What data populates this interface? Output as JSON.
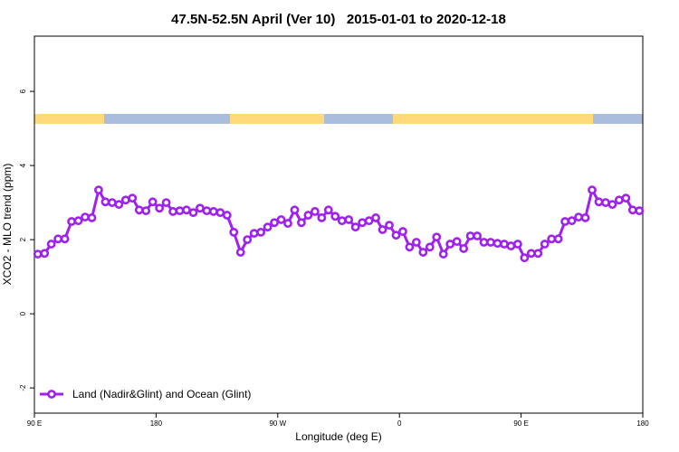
{
  "chart_data": {
    "type": "line",
    "title": "47.5N-52.5N April (Ver 10)   2015-01-01 to 2020-12-18",
    "x_label": "Longitude (deg E)",
    "y_label": "XCO2 - MLO trend (ppm)",
    "xlim": [
      90,
      540
    ],
    "ylim": [
      -2.68,
      7.49
    ],
    "xticks": [
      {
        "value": 90,
        "label": "90 E"
      },
      180,
      {
        "value": 270,
        "label": "90 W"
      },
      {
        "value": 360,
        "label": "0"
      },
      {
        "value": 450,
        "label": "90 E"
      },
      {
        "value": 540,
        "label": "180"
      }
    ],
    "yticks": [
      -2,
      0,
      2,
      4,
      6
    ],
    "legend": "bottom-left",
    "x": [
      92.5,
      97.5,
      102.5,
      107.5,
      112.5,
      117.5,
      122.5,
      127.5,
      132.5,
      137.5,
      142.5,
      147.5,
      152.5,
      157.5,
      162.5,
      167.5,
      172.5,
      177.5,
      182.5,
      187.5,
      192.5,
      197.5,
      202.5,
      207.5,
      212.5,
      217.5,
      222.5,
      227.5,
      232.5,
      237.5,
      242.5,
      247.5,
      252.5,
      257.5,
      262.5,
      267.5,
      272.5,
      277.5,
      282.5,
      287.5,
      292.5,
      297.5,
      302.5,
      307.5,
      312.5,
      317.5,
      322.5,
      327.5,
      332.5,
      337.5,
      342.5,
      347.5,
      352.5,
      357.5,
      362.5,
      367.5,
      372.5,
      377.5,
      382.5,
      387.5,
      392.5,
      397.5,
      402.5,
      407.5,
      412.5,
      417.5,
      422.5,
      427.5,
      432.5,
      437.5,
      442.5,
      447.5,
      452.5,
      457.5,
      462.5,
      467.5,
      472.5,
      477.5,
      482.5,
      487.5,
      492.5,
      497.5,
      502.5,
      507.5,
      512.5,
      517.5,
      522.5,
      527.5,
      532.5,
      537.5
    ],
    "series": [
      {
        "name": "Land (Nadir&Glint) and Ocean (Glint)",
        "color": "#a020f0",
        "values": [
          1.61,
          1.63,
          1.88,
          2.02,
          2.02,
          2.49,
          2.51,
          2.61,
          2.59,
          3.34,
          3.02,
          3.0,
          2.95,
          3.07,
          3.12,
          2.8,
          2.78,
          3.02,
          2.85,
          3.0,
          2.76,
          2.78,
          2.8,
          2.73,
          2.85,
          2.78,
          2.76,
          2.73,
          2.66,
          2.2,
          1.66,
          2.0,
          2.17,
          2.2,
          2.34,
          2.46,
          2.54,
          2.44,
          2.8,
          2.46,
          2.66,
          2.76,
          2.59,
          2.8,
          2.63,
          2.51,
          2.54,
          2.34,
          2.46,
          2.51,
          2.59,
          2.27,
          2.39,
          2.12,
          2.22,
          1.8,
          1.93,
          1.66,
          1.8,
          2.07,
          1.61,
          1.88,
          1.95,
          1.76,
          2.1,
          2.1,
          1.93,
          1.93,
          1.9,
          1.88,
          1.83,
          1.88,
          1.51,
          1.63,
          1.63,
          1.88,
          2.02,
          2.02,
          2.49,
          2.51,
          2.61,
          2.59,
          3.34,
          3.02,
          3.0,
          2.95,
          3.07,
          3.12,
          2.8,
          2.78
        ]
      }
    ]
  }
}
